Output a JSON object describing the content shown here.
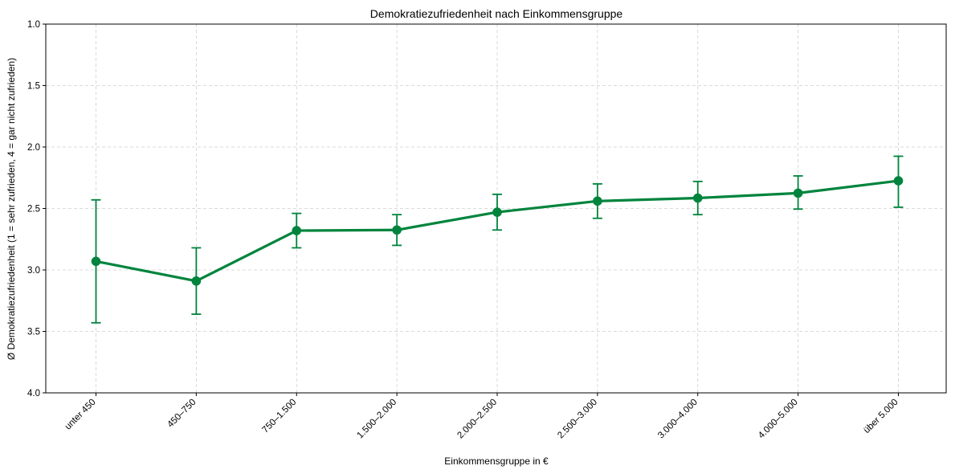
{
  "chart_data": {
    "type": "line",
    "title": "Demokratiezufriedenheit nach Einkommensgruppe",
    "xlabel": "Einkommensgruppe in €",
    "ylabel": "Ø Demokratiezufriedenheit (1 = sehr zufrieden, 4 = gar nicht zufrieden)",
    "ylim": [
      1.0,
      4.0
    ],
    "y_inverted": true,
    "y_ticks": [
      "1.0",
      "1.5",
      "2.0",
      "2.5",
      "3.0",
      "3.5",
      "4.0"
    ],
    "y_tick_values": [
      1.0,
      1.5,
      2.0,
      2.5,
      3.0,
      3.5,
      4.0
    ],
    "grid": true,
    "color": "#00843d",
    "categories": [
      "unter 450",
      "450–750",
      "750–1.500",
      "1.500–2.000",
      "2.000–2.500",
      "2.500–3.000",
      "3.000–4.000",
      "4.000–5.000",
      "über 5.000"
    ],
    "series": [
      {
        "values": [
          2.93,
          3.09,
          2.68,
          2.675,
          2.53,
          2.44,
          2.415,
          2.375,
          2.275
        ],
        "error_lower": [
          2.43,
          2.82,
          2.54,
          2.55,
          2.385,
          2.3,
          2.28,
          2.235,
          2.075
        ],
        "error_upper": [
          3.43,
          3.36,
          2.82,
          2.8,
          2.675,
          2.58,
          2.55,
          2.505,
          2.49
        ]
      }
    ]
  }
}
